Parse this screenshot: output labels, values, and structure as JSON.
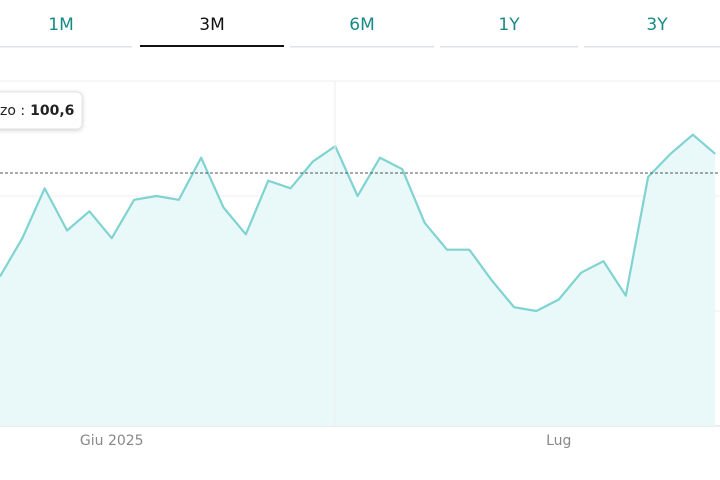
{
  "chart_data": {
    "type": "area",
    "tabs": [
      "1M",
      "3M",
      "6M",
      "1Y",
      "3Y"
    ],
    "selected_tab": 1,
    "categories": [
      null,
      null,
      null,
      null,
      null,
      "Giu 2025",
      null,
      null,
      null,
      null,
      null,
      null,
      null,
      null,
      null,
      null,
      null,
      null,
      null,
      null,
      null,
      null,
      null,
      null,
      null,
      "Lug",
      null,
      null,
      null,
      null,
      null,
      null,
      null
    ],
    "values": [
      97.9,
      98.9,
      100.2,
      99.1,
      99.6,
      98.9,
      99.9,
      100.0,
      99.9,
      101.0,
      99.7,
      99.0,
      100.4,
      100.2,
      100.9,
      101.3,
      100.0,
      101.0,
      100.7,
      99.3,
      98.6,
      98.6,
      97.8,
      97.1,
      97.0,
      97.3,
      98.0,
      98.3,
      97.4,
      100.5,
      101.1,
      101.6,
      101.1
    ],
    "color": "#7fd3d1",
    "fill": "#e9f8f8",
    "ylim": [
      94,
      103
    ],
    "yticks": [
      94,
      97,
      100,
      103
    ],
    "grid": true,
    "tooltip_label": "zo :",
    "tooltip": {
      "value": 100.6,
      "label": "100,6"
    }
  }
}
